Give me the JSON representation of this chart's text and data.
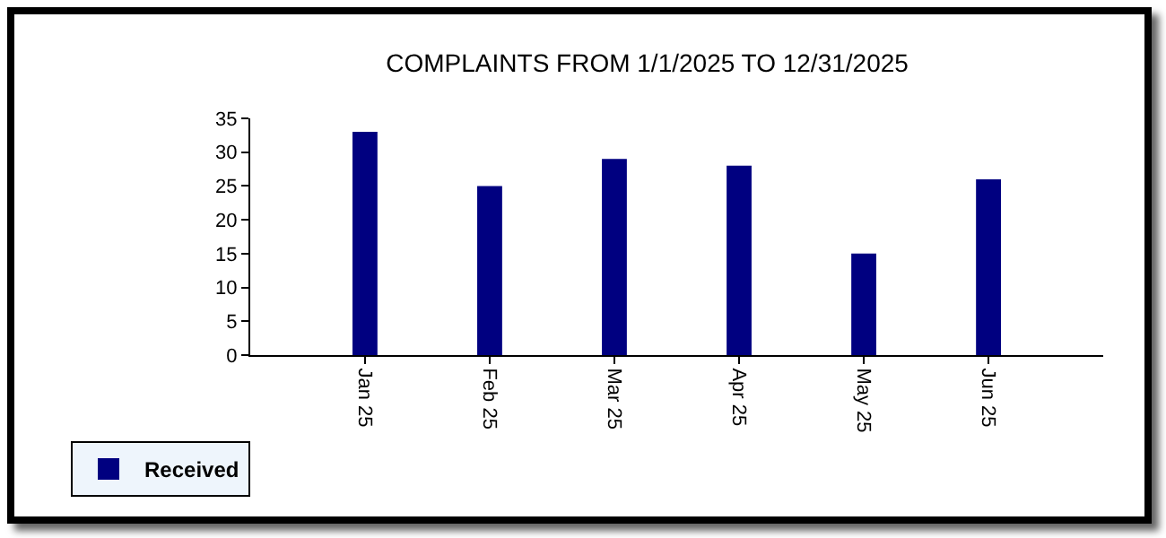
{
  "chart_data": {
    "type": "bar",
    "title": "COMPLAINTS FROM 1/1/2025 TO 12/31/2025",
    "categories": [
      "Jan 25",
      "Feb 25",
      "Mar 25",
      "Apr 25",
      "May 25",
      "Jun 25"
    ],
    "series": [
      {
        "name": "Received",
        "color": "#000080",
        "values": [
          33,
          25,
          29,
          28,
          15,
          26
        ]
      }
    ],
    "ylim": [
      0,
      35
    ],
    "yticks": [
      0,
      5,
      10,
      15,
      20,
      25,
      30,
      35
    ],
    "grid": false,
    "legend": "bottom left"
  }
}
